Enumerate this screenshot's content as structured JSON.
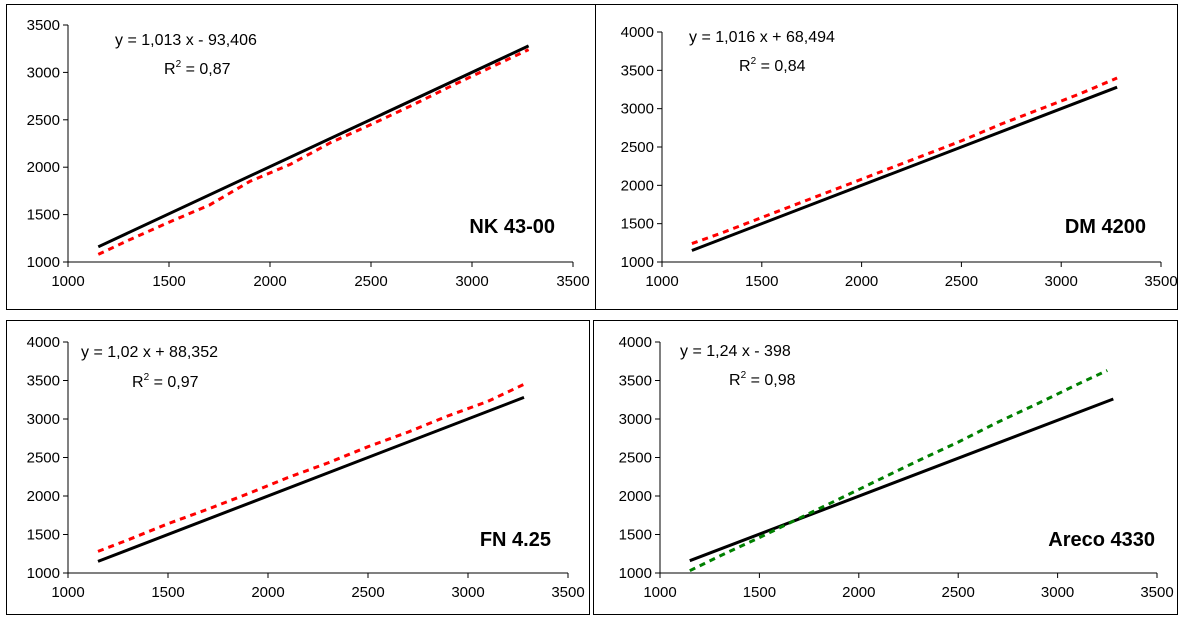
{
  "chart_data": [
    {
      "type": "line",
      "title": "NK 43-00",
      "equation": "y = 1,013 x - 93,406",
      "r2_prefix": "R",
      "r2_sup": "2",
      "r2_suffix": " = 0,87",
      "xlim": [
        1000,
        3500
      ],
      "ylim": [
        1000,
        3500
      ],
      "xticks": [
        "1000",
        "1500",
        "2000",
        "2500",
        "3000",
        "3500"
      ],
      "yticks": [
        "1000",
        "1500",
        "2000",
        "2500",
        "3000",
        "3500"
      ],
      "series": [
        {
          "style": "solid",
          "color": "#000000",
          "x": [
            1150,
            3280
          ],
          "y": [
            1160,
            3280
          ]
        },
        {
          "style": "dotted",
          "color": "#ff0000",
          "x": [
            1150,
            1300,
            1500,
            1700,
            1900,
            2100,
            2300,
            2500,
            2700,
            2900,
            3100,
            3280
          ],
          "y": [
            1080,
            1230,
            1420,
            1600,
            1850,
            2030,
            2260,
            2450,
            2650,
            2860,
            3060,
            3240
          ]
        }
      ]
    },
    {
      "type": "line",
      "title": "DM 4200",
      "equation": "y = 1,016 x + 68,494",
      "r2_prefix": "R",
      "r2_sup": "2",
      "r2_suffix": " = 0,84",
      "xlim": [
        1000,
        3500
      ],
      "ylim": [
        1000,
        4000
      ],
      "xticks": [
        "1000",
        "1500",
        "2000",
        "2500",
        "3000",
        "3500"
      ],
      "yticks": [
        "1000",
        "1500",
        "2000",
        "2500",
        "3000",
        "3500",
        "4000"
      ],
      "series": [
        {
          "style": "solid",
          "color": "#000000",
          "x": [
            1150,
            3280
          ],
          "y": [
            1150,
            3280
          ]
        },
        {
          "style": "dotted",
          "color": "#ff0000",
          "x": [
            1150,
            1300,
            1500,
            1700,
            1900,
            2100,
            2300,
            2500,
            2700,
            2900,
            3100,
            3280
          ],
          "y": [
            1240,
            1380,
            1580,
            1780,
            1980,
            2180,
            2380,
            2580,
            2800,
            3000,
            3200,
            3400
          ]
        }
      ]
    },
    {
      "type": "line",
      "title": "FN 4.25",
      "equation": "y = 1,02 x + 88,352",
      "r2_prefix": "R",
      "r2_sup": "2",
      "r2_suffix": " = 0,97",
      "xlim": [
        1000,
        3500
      ],
      "ylim": [
        1000,
        4000
      ],
      "xticks": [
        "1000",
        "1500",
        "2000",
        "2500",
        "3000",
        "3500"
      ],
      "yticks": [
        "1000",
        "1500",
        "2000",
        "2500",
        "3000",
        "3500",
        "4000"
      ],
      "series": [
        {
          "style": "solid",
          "color": "#000000",
          "x": [
            1150,
            3280
          ],
          "y": [
            1150,
            3280
          ]
        },
        {
          "style": "dotted",
          "color": "#ff0000",
          "x": [
            1150,
            1300,
            1500,
            1700,
            1900,
            2100,
            2300,
            2500,
            2700,
            2900,
            3100,
            3280
          ],
          "y": [
            1280,
            1430,
            1640,
            1830,
            2030,
            2240,
            2430,
            2640,
            2830,
            3040,
            3230,
            3450
          ]
        }
      ]
    },
    {
      "type": "line",
      "title": "Areco 4330",
      "equation": "y = 1,24 x - 398",
      "r2_prefix": "R",
      "r2_sup": "2",
      "r2_suffix": " = 0,98",
      "xlim": [
        1000,
        3500
      ],
      "ylim": [
        1000,
        4000
      ],
      "xticks": [
        "1000",
        "1500",
        "2000",
        "2500",
        "3000",
        "3500"
      ],
      "yticks": [
        "1000",
        "1500",
        "2000",
        "2500",
        "3000",
        "3500",
        "4000"
      ],
      "series": [
        {
          "style": "solid",
          "color": "#000000",
          "x": [
            1150,
            3280
          ],
          "y": [
            1160,
            3260
          ]
        },
        {
          "style": "dotted",
          "color": "#008000",
          "x": [
            1150,
            1300,
            1500,
            1700,
            1900,
            2100,
            2300,
            2500,
            2700,
            2900,
            3100,
            3250
          ],
          "y": [
            1030,
            1220,
            1460,
            1710,
            1960,
            2210,
            2460,
            2700,
            2960,
            3200,
            3450,
            3630
          ]
        }
      ]
    }
  ]
}
